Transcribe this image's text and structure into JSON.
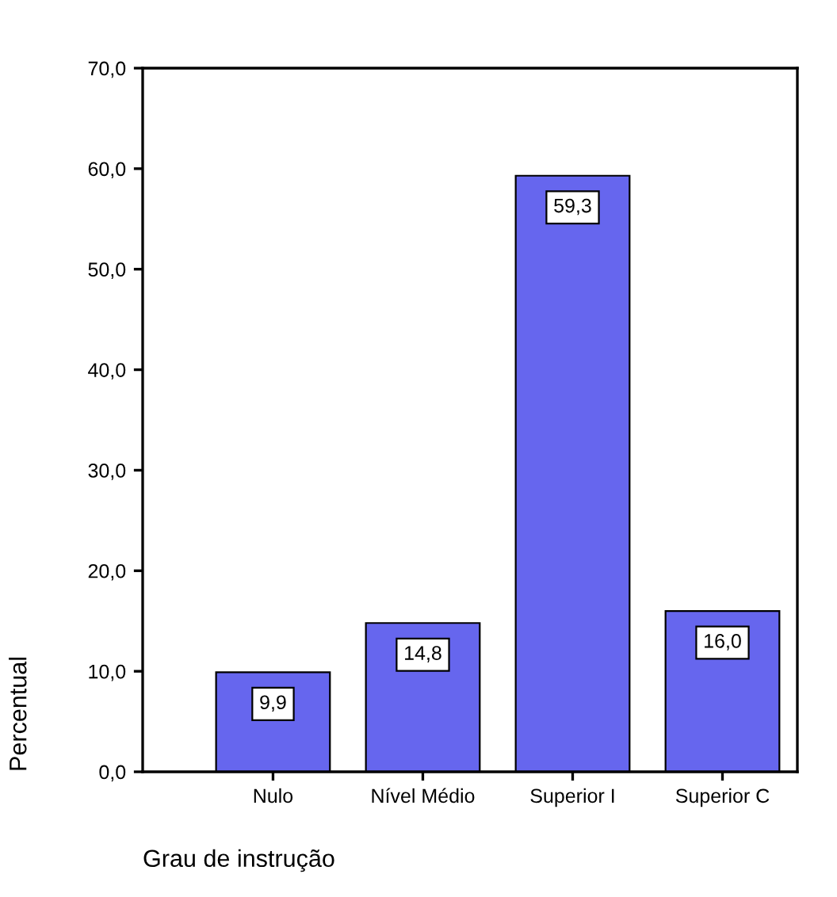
{
  "chart_data": {
    "type": "bar",
    "xlabel": "Grau de instrução",
    "ylabel": "Percentual",
    "categories": [
      "Nulo",
      "Nível Médio",
      "Superior I",
      "Superior C"
    ],
    "values": [
      9.9,
      14.8,
      59.3,
      16.0
    ],
    "value_labels": [
      "9,9",
      "14,8",
      "59,3",
      "16,0"
    ],
    "color": "#6666ee",
    "ylim": [
      0,
      70
    ],
    "yticks": [
      {
        "value": 0,
        "label": "0,0"
      },
      {
        "value": 10,
        "label": "10,0"
      },
      {
        "value": 20,
        "label": "20,0"
      },
      {
        "value": 30,
        "label": "30,0"
      },
      {
        "value": 40,
        "label": "40,0"
      },
      {
        "value": 50,
        "label": "50,0"
      },
      {
        "value": 60,
        "label": "60,0"
      },
      {
        "value": 70,
        "label": "70,0"
      }
    ],
    "grid": false,
    "legend": false
  }
}
